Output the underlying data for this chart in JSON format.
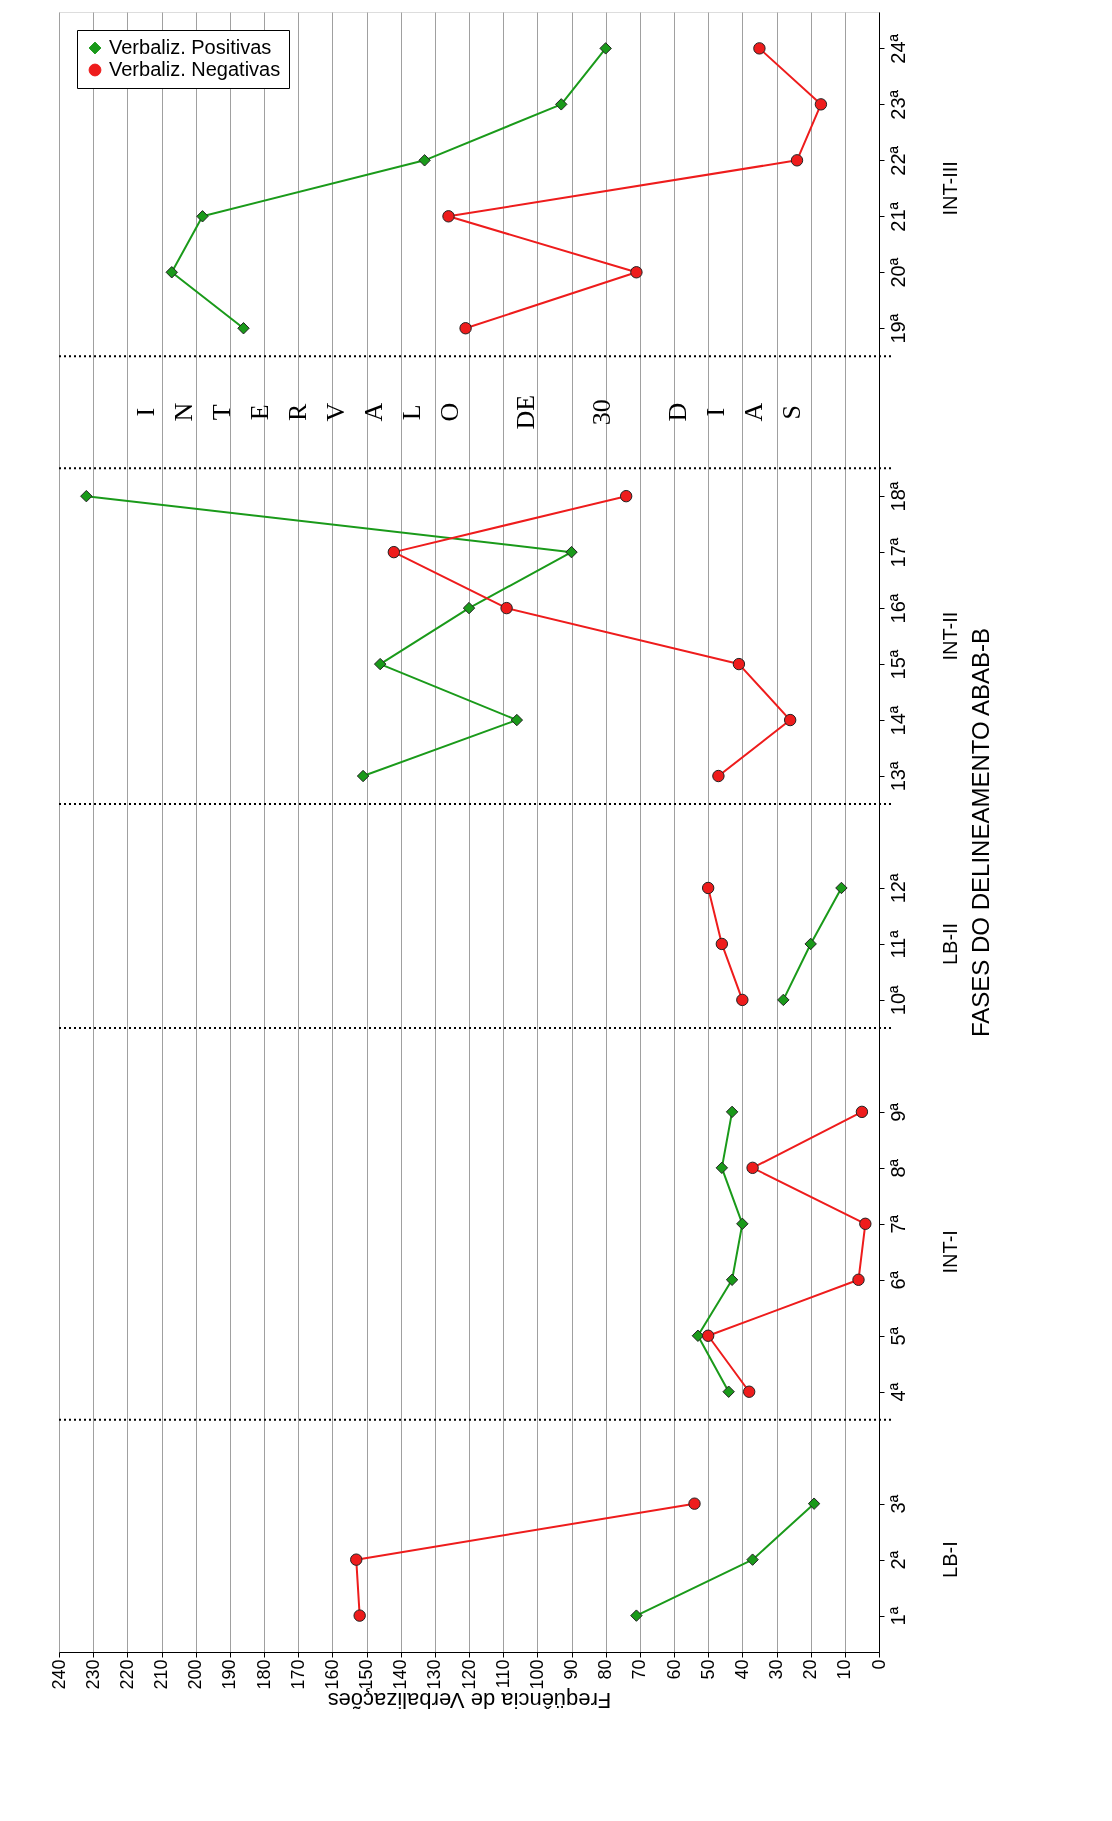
{
  "chart_data": {
    "type": "line",
    "orientation": "horizontal",
    "xlabel": "Freqüência  de  Verbalizações",
    "ylabel": "FASES  DO  DELINEAMENTO  ABAB-B",
    "categories": [
      "24ª",
      "23ª",
      "22ª",
      "21ª",
      "20ª",
      "19ª",
      null,
      null,
      "18ª",
      "17ª",
      "16ª",
      "15ª",
      "14ª",
      "13ª",
      null,
      "12ª",
      "11ª",
      "10ª",
      null,
      "9ª",
      "8ª",
      "7ª",
      "6ª",
      "5ª",
      "4ª",
      null,
      "3ª",
      "2ª",
      "1ª"
    ],
    "series": [
      {
        "name": "Verbaliz. Positivas",
        "color": "#1a9a1a",
        "marker": "diamond",
        "values": [
          80,
          93,
          133,
          198,
          207,
          186,
          null,
          null,
          232,
          90,
          120,
          146,
          106,
          151,
          null,
          11,
          20,
          28,
          null,
          43,
          46,
          40,
          43,
          53,
          44,
          null,
          19,
          37,
          71
        ]
      },
      {
        "name": "Verbaliz. Negativas",
        "color": "#ee1c1c",
        "marker": "circle",
        "values": [
          35,
          17,
          24,
          126,
          71,
          121,
          null,
          null,
          74,
          142,
          109,
          41,
          26,
          47,
          null,
          50,
          46,
          40,
          null,
          5,
          37,
          4,
          6,
          50,
          38,
          null,
          54,
          153,
          152
        ]
      }
    ],
    "xlim": [
      240,
      0
    ],
    "xticks": [
      0,
      10,
      20,
      30,
      40,
      50,
      60,
      70,
      80,
      90,
      100,
      110,
      120,
      130,
      140,
      150,
      160,
      170,
      180,
      190,
      200,
      210,
      220,
      230,
      240
    ],
    "grid": "x",
    "legend": "top left",
    "annotations": [
      "INT-III",
      "I N T E R V A L O  DE  30  D I A S",
      "INT-II",
      "LB-II",
      "INT-I",
      "LB-I"
    ]
  }
}
